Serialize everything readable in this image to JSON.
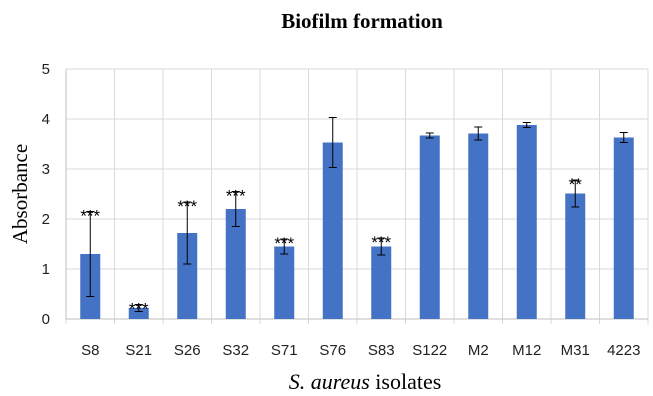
{
  "chart_data": {
    "type": "bar",
    "title": "Biofilm formation",
    "xlabel_italic": "S. aureus",
    "xlabel_rest": " isolates",
    "ylabel": "Absorbance",
    "ylim": [
      0,
      5
    ],
    "yticks": [
      "0",
      "1",
      "2",
      "3",
      "4",
      "5"
    ],
    "grid": true,
    "bar_color": "#4472C4",
    "categories": [
      "S8",
      "S21",
      "S26",
      "S32",
      "S71",
      "S76",
      "S83",
      "S122",
      "M2",
      "M12",
      "M31",
      "4223"
    ],
    "values": [
      1.3,
      0.22,
      1.72,
      2.2,
      1.45,
      3.53,
      1.45,
      3.67,
      3.71,
      3.88,
      2.51,
      3.63
    ],
    "errors": [
      0.85,
      0.07,
      0.62,
      0.35,
      0.15,
      0.5,
      0.17,
      0.05,
      0.13,
      0.05,
      0.27,
      0.1
    ],
    "significance": [
      "***",
      "***",
      "***",
      "***",
      "***",
      "",
      "***",
      "",
      "",
      "",
      "**",
      ""
    ]
  }
}
